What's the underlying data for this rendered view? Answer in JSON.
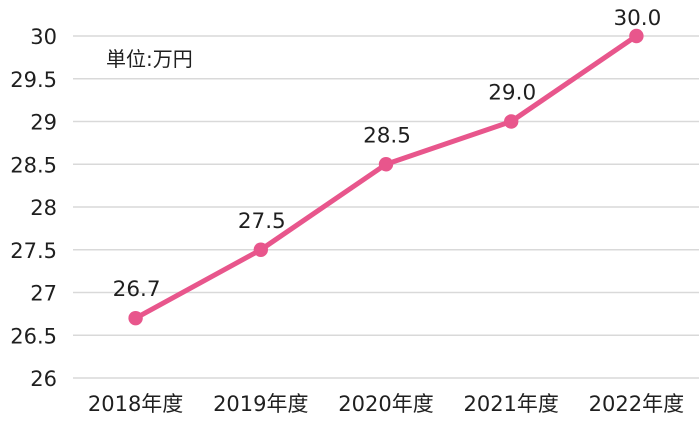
{
  "chart_data": {
    "type": "line",
    "title": "",
    "unit_label": "単位:万円",
    "categories": [
      "2018年度",
      "2019年度",
      "2020年度",
      "2021年度",
      "2022年度"
    ],
    "series": [
      {
        "name": "series-1",
        "values": [
          26.7,
          27.5,
          28.5,
          29.0,
          30.0
        ],
        "data_labels": [
          "26.7",
          "27.5",
          "28.5",
          "29.0",
          "30.0"
        ]
      }
    ],
    "xlabel": "",
    "ylabel": "",
    "ylim": [
      26,
      30
    ],
    "ytick_step": 0.5,
    "ytick_labels": [
      "30",
      "29.5",
      "29",
      "28.5",
      "28",
      "27.5",
      "27",
      "26.5",
      "26"
    ],
    "grid": "horizontal",
    "legend": "none",
    "colors": {
      "line": "#e8568c",
      "marker": "#e8568c",
      "grid": "#d9d9d9",
      "text": "#1f1f1f",
      "background": "#ffffff"
    }
  }
}
